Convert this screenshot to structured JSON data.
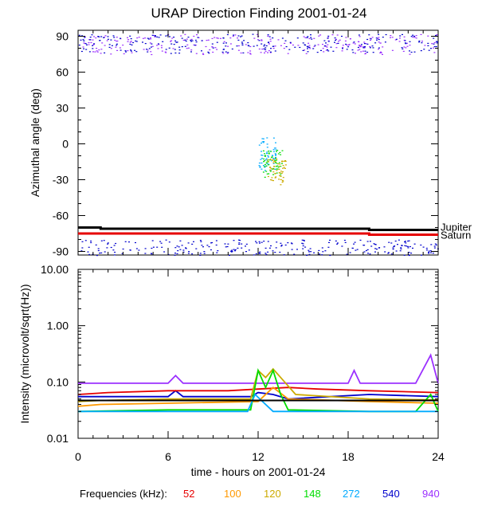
{
  "chart_data": [
    {
      "type": "scatter",
      "title": "URAP Direction Finding  2001-01-24",
      "ylabel": "Azimuthal angle (deg)",
      "xlim": [
        0,
        24
      ],
      "ylim": [
        -93,
        95
      ],
      "y_ticks": [
        "90",
        "60",
        "30",
        "0",
        "-30",
        "-60",
        "-90"
      ],
      "grid": false,
      "reference_lines": [
        {
          "name": "Jupiter",
          "color": "#000000",
          "points": [
            [
              0,
              -70
            ],
            [
              1.5,
              -70
            ],
            [
              1.5,
              -71
            ],
            [
              19.4,
              -71
            ],
            [
              19.4,
              -72
            ],
            [
              24,
              -72
            ]
          ]
        },
        {
          "name": "Saturn",
          "color": "#e60000",
          "points": [
            [
              0,
              -75
            ],
            [
              19.4,
              -75
            ],
            [
              19.4,
              -76
            ],
            [
              24,
              -76
            ]
          ]
        }
      ],
      "clusters": [
        {
          "freq_khz": 940,
          "color": "#9b30ff",
          "x_range": [
            0,
            24
          ],
          "y_range": [
            75,
            92
          ]
        },
        {
          "freq_khz": 540,
          "color": "#0000cc",
          "x_range": [
            0,
            24
          ],
          "y_range": [
            -93,
            -80
          ]
        },
        {
          "freq_khz": 540,
          "color": "#0000cc",
          "x_range": [
            0,
            24
          ],
          "y_range": [
            76,
            92
          ]
        },
        {
          "freq_khz": 272,
          "color": "#00aaff",
          "x_range": [
            11.9,
            13.2
          ],
          "y_range": [
            -22,
            6
          ]
        },
        {
          "freq_khz": 148,
          "color": "#00dd00",
          "x_range": [
            12.3,
            13.6
          ],
          "y_range": [
            -28,
            -5
          ]
        },
        {
          "freq_khz": 120,
          "color": "#ccaa00",
          "x_range": [
            12.6,
            13.8
          ],
          "y_range": [
            -34,
            -12
          ]
        }
      ]
    },
    {
      "type": "line",
      "ylabel": "Intensity (microvolt/sqrt(Hz))",
      "xlabel": "time - hours on 2001-01-24",
      "xlim": [
        0,
        24
      ],
      "ylim": [
        0.01,
        10
      ],
      "y_scale": "log",
      "x_ticks": [
        "0",
        "6",
        "12",
        "18",
        "24"
      ],
      "y_ticks": [
        "10.00",
        "1.00",
        "0.10",
        "0.01"
      ],
      "grid": false,
      "series": [
        {
          "freq_khz": 940,
          "color": "#9b30ff",
          "x": [
            0,
            6,
            6.5,
            7,
            12,
            18,
            18.4,
            18.8,
            22.5,
            23.5,
            24
          ],
          "y": [
            0.095,
            0.095,
            0.13,
            0.095,
            0.095,
            0.095,
            0.16,
            0.095,
            0.095,
            0.3,
            0.095
          ]
        },
        {
          "freq_khz": 540,
          "color": "#0000cc",
          "x": [
            0,
            1.5,
            6,
            6.5,
            7,
            11.5,
            12,
            13,
            14,
            19.4,
            24
          ],
          "y": [
            0.055,
            0.055,
            0.055,
            0.07,
            0.055,
            0.055,
            0.065,
            0.06,
            0.05,
            0.06,
            0.055
          ]
        },
        {
          "freq_khz": 52,
          "color": "#e60000",
          "x": [
            0,
            2,
            6,
            10,
            12,
            14,
            16,
            19.4,
            24
          ],
          "y": [
            0.06,
            0.065,
            0.07,
            0.07,
            0.075,
            0.08,
            0.075,
            0.07,
            0.065
          ]
        },
        {
          "freq_khz": 100,
          "color": "#ff9900",
          "x": [
            0,
            1.5,
            6,
            12,
            13,
            14,
            19.4,
            24
          ],
          "y": [
            0.037,
            0.04,
            0.042,
            0.045,
            0.08,
            0.05,
            0.045,
            0.042
          ]
        },
        {
          "freq_khz": 120,
          "color": "#ccaa00",
          "x": [
            0,
            1.5,
            6,
            11.5,
            12,
            12.5,
            13,
            13.5,
            14.5,
            19.4,
            24
          ],
          "y": [
            0.045,
            0.047,
            0.05,
            0.05,
            0.16,
            0.12,
            0.17,
            0.12,
            0.06,
            0.05,
            0.048
          ]
        },
        {
          "freq_khz": 148,
          "color": "#00dd00",
          "x": [
            0,
            6,
            11.5,
            12,
            12.5,
            13,
            13.5,
            14,
            19.4,
            22.5,
            23.5,
            24
          ],
          "y": [
            0.03,
            0.032,
            0.032,
            0.16,
            0.08,
            0.16,
            0.06,
            0.032,
            0.03,
            0.03,
            0.06,
            0.03
          ]
        },
        {
          "freq_khz": 272,
          "color": "#00aaff",
          "x": [
            0,
            6,
            11.3,
            11.8,
            12.5,
            13,
            19.4,
            24
          ],
          "y": [
            0.03,
            0.03,
            0.03,
            0.06,
            0.04,
            0.03,
            0.03,
            0.03
          ]
        },
        {
          "name": "black",
          "color": "#000000",
          "x": [
            0,
            24
          ],
          "y": [
            0.047,
            0.047
          ]
        }
      ]
    }
  ],
  "legend": {
    "label": "Frequencies (kHz):",
    "items": [
      {
        "text": "52",
        "color": "#e60000"
      },
      {
        "text": "100",
        "color": "#ff9900"
      },
      {
        "text": "120",
        "color": "#ccaa00"
      },
      {
        "text": "148",
        "color": "#00dd00"
      },
      {
        "text": "272",
        "color": "#00aaff"
      },
      {
        "text": "540",
        "color": "#0000cc"
      },
      {
        "text": "940",
        "color": "#9b30ff"
      }
    ]
  }
}
